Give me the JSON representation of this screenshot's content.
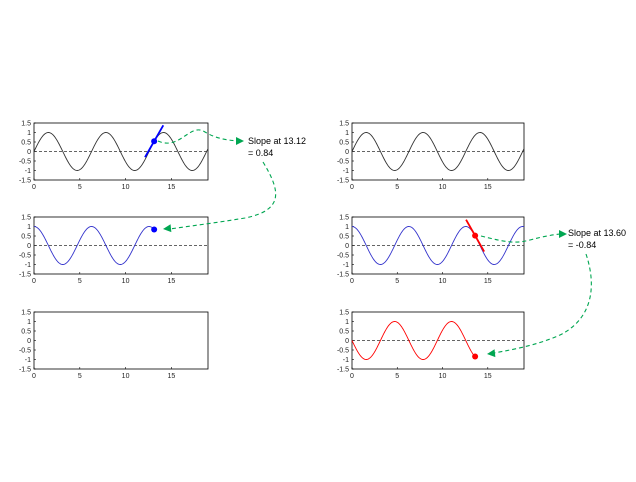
{
  "chart_data": [
    {
      "type": "line",
      "xlim": [
        0,
        19
      ],
      "ylim": [
        -1.5,
        1.5
      ],
      "xticks": [
        "0",
        "5",
        "10",
        "15"
      ],
      "yticks": [
        "1.5",
        "1",
        "0.5",
        "0",
        "-0.5",
        "-1",
        "-1.5"
      ],
      "series": [
        {
          "function": "sin",
          "x_range": [
            0,
            19
          ],
          "color": "#333333"
        }
      ],
      "marker": {
        "x": 13.12,
        "y": 0.54,
        "color": "#0000ff"
      },
      "tangent": {
        "x": 13.12,
        "slope": 0.84,
        "color": "#0000ff"
      },
      "baseline": 0
    },
    {
      "type": "line",
      "xlim": [
        0,
        19
      ],
      "ylim": [
        -1.5,
        1.5
      ],
      "xticks": [
        "0",
        "5",
        "10",
        "15"
      ],
      "yticks": [
        "1.5",
        "1",
        "0.5",
        "0",
        "-0.5",
        "-1",
        "-1.5"
      ],
      "series": [
        {
          "function": "cos",
          "x_range": [
            0,
            13.12
          ],
          "color": "#3333cc"
        }
      ],
      "marker": {
        "x": 13.12,
        "y": 0.84,
        "color": "#0000ff"
      },
      "baseline": 0
    },
    {
      "type": "line",
      "xlim": [
        0,
        19
      ],
      "ylim": [
        -1.5,
        1.5
      ],
      "xticks": [
        "0",
        "5",
        "10",
        "15"
      ],
      "yticks": [
        "1.5",
        "1",
        "0.5",
        "0",
        "-0.5",
        "-1",
        "-1.5"
      ],
      "series": []
    },
    {
      "type": "line",
      "xlim": [
        0,
        19
      ],
      "ylim": [
        -1.5,
        1.5
      ],
      "xticks": [
        "0",
        "5",
        "10",
        "15"
      ],
      "yticks": [
        "1.5",
        "1",
        "0.5",
        "0",
        "-0.5",
        "-1",
        "-1.5"
      ],
      "series": [
        {
          "function": "sin",
          "x_range": [
            0,
            19
          ],
          "color": "#333333"
        }
      ],
      "baseline": 0
    },
    {
      "type": "line",
      "xlim": [
        0,
        19
      ],
      "ylim": [
        -1.5,
        1.5
      ],
      "xticks": [
        "0",
        "5",
        "10",
        "15"
      ],
      "yticks": [
        "1.5",
        "1",
        "0.5",
        "0",
        "-0.5",
        "-1",
        "-1.5"
      ],
      "series": [
        {
          "function": "cos",
          "x_range": [
            0,
            19
          ],
          "color": "#3333cc"
        }
      ],
      "marker": {
        "x": 13.6,
        "y": 0.52,
        "color": "#ff0000"
      },
      "tangent": {
        "x": 13.6,
        "slope": -0.84,
        "color": "#ff0000"
      },
      "baseline": 0
    },
    {
      "type": "line",
      "xlim": [
        0,
        19
      ],
      "ylim": [
        -1.5,
        1.5
      ],
      "xticks": [
        "0",
        "5",
        "10",
        "15"
      ],
      "yticks": [
        "1.5",
        "1",
        "0.5",
        "0",
        "-0.5",
        "-1",
        "-1.5"
      ],
      "series": [
        {
          "function": "neg_sin",
          "x_range": [
            0,
            13.6
          ],
          "color": "#ff0000"
        }
      ],
      "marker": {
        "x": 13.6,
        "y": -0.84,
        "color": "#ff0000"
      },
      "baseline": 0
    }
  ],
  "annotations": [
    {
      "line1": "Slope at 13.12",
      "line2": "= 0.84"
    },
    {
      "line1": "Slope at 13.60",
      "line2": "= -0.84"
    }
  ],
  "colors": {
    "arrow": "#00a651",
    "axis": "#000000",
    "baseline": "#333333"
  }
}
